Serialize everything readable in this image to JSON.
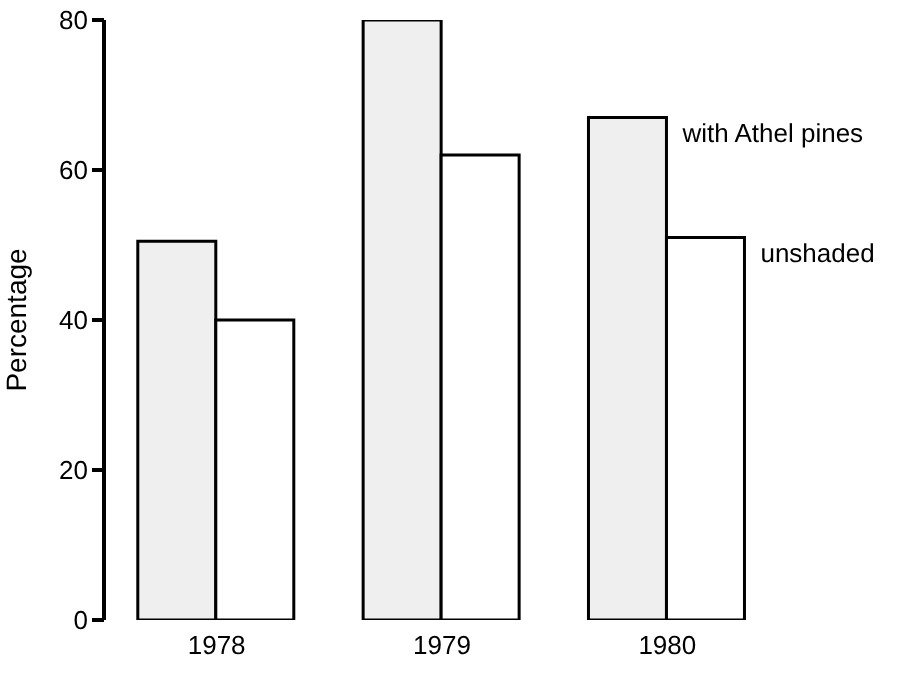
{
  "chart_data": {
    "type": "bar",
    "ylabel": "Percentage",
    "categories": [
      "1978",
      "1979",
      "1980"
    ],
    "series": [
      {
        "name": "with Athel pines",
        "color": "#efefef",
        "values": [
          50.5,
          80,
          67
        ]
      },
      {
        "name": "unshaded",
        "color": "#ffffff",
        "values": [
          40,
          62,
          51
        ]
      }
    ],
    "ylim": [
      0,
      80
    ],
    "yticks": [
      0,
      20,
      40,
      60,
      80
    ],
    "grid": false,
    "legend": false
  }
}
